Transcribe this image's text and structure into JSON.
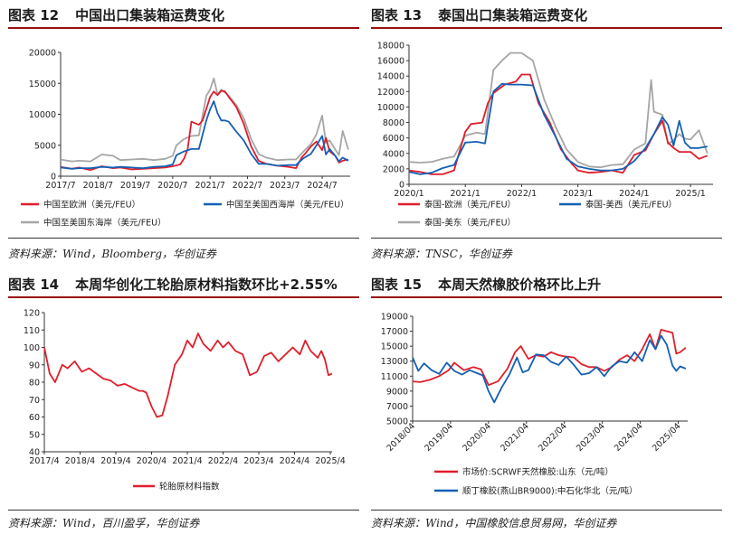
{
  "panels": [
    {
      "id": "p12",
      "title_num": "图表 12",
      "title_text": "中国出口集装箱运费变化",
      "source": "资料来源：Wind，Bloomberg，华创证券"
    },
    {
      "id": "p13",
      "title_num": "图表 13",
      "title_text": "泰国出口集装箱运费变化",
      "source": "资料来源：TNSC，华创证券"
    },
    {
      "id": "p14",
      "title_num": "图表 14",
      "title_text": "本周华创化工轮胎原材料指数环比+2.55%",
      "source": "资料来源：Wind，百川盈孚，华创证券"
    },
    {
      "id": "p15",
      "title_num": "图表 15",
      "title_text": "本周天然橡胶价格环比上升",
      "source": "资料来源：Wind，中国橡胶信息贸易网，华创证券"
    }
  ],
  "chart_data": [
    {
      "type": "line",
      "ylim": [
        0,
        20000
      ],
      "yticks": [
        "0",
        "5000",
        "10000",
        "15000",
        "20000"
      ],
      "xticks": [
        "2017/7",
        "2018/7",
        "2019/7",
        "2020/7",
        "2021/7",
        "2022/7",
        "2023/7",
        "2024/7"
      ],
      "xrange": [
        2017.5,
        2025.25
      ],
      "legend_placement": "bottom",
      "series": [
        {
          "name": "中国至欧洲（美元/FEU）",
          "color": "#e01e2b",
          "x": [
            2017.5,
            2017.8,
            2018.0,
            2018.3,
            2018.6,
            2018.9,
            2019.1,
            2019.4,
            2019.7,
            2020.0,
            2020.3,
            2020.5,
            2020.7,
            2020.8,
            2020.9,
            2021.0,
            2021.2,
            2021.3,
            2021.5,
            2021.6,
            2021.7,
            2021.8,
            2021.9,
            2022.0,
            2022.2,
            2022.4,
            2022.6,
            2022.8,
            2023.0,
            2023.3,
            2023.6,
            2023.8,
            2023.95,
            2024.05,
            2024.2,
            2024.35,
            2024.5,
            2024.6,
            2024.7,
            2024.85,
            2024.95,
            2025.05,
            2025.2
          ],
          "y": [
            1500,
            1200,
            1400,
            1000,
            1600,
            1300,
            1400,
            1100,
            1200,
            1300,
            1400,
            1600,
            1900,
            2800,
            4400,
            8800,
            8300,
            9000,
            12800,
            13700,
            13100,
            13800,
            13700,
            12800,
            11200,
            8500,
            4800,
            2500,
            2000,
            1700,
            1500,
            1300,
            3000,
            3700,
            4800,
            5600,
            4200,
            6200,
            4000,
            3300,
            2200,
            2500,
            2700
          ]
        },
        {
          "name": "中国至美国西海岸（美元/FEU）",
          "color": "#1460b4",
          "x": [
            2017.5,
            2017.8,
            2018.0,
            2018.3,
            2018.6,
            2018.9,
            2019.1,
            2019.4,
            2019.7,
            2020.0,
            2020.3,
            2020.5,
            2020.6,
            2020.8,
            2021.0,
            2021.2,
            2021.4,
            2021.5,
            2021.6,
            2021.7,
            2021.8,
            2021.9,
            2022.0,
            2022.2,
            2022.4,
            2022.6,
            2022.8,
            2023.0,
            2023.3,
            2023.6,
            2023.8,
            2024.0,
            2024.2,
            2024.35,
            2024.5,
            2024.6,
            2024.7,
            2024.85,
            2024.95,
            2025.05,
            2025.2
          ],
          "y": [
            1400,
            1200,
            1300,
            1300,
            1500,
            1400,
            1500,
            1400,
            1300,
            1500,
            1600,
            1900,
            3400,
            4000,
            4400,
            4400,
            9000,
            10800,
            12100,
            10200,
            9000,
            9000,
            8800,
            7200,
            5800,
            3600,
            2000,
            2000,
            1700,
            1800,
            1800,
            2900,
            3600,
            5000,
            6500,
            3500,
            4400,
            3300,
            2400,
            3000,
            2500
          ]
        },
        {
          "name": "中国至美国东海岸（美元/FEU）",
          "color": "#a6a6a6",
          "x": [
            2017.5,
            2017.8,
            2018.0,
            2018.3,
            2018.6,
            2018.9,
            2019.1,
            2019.4,
            2019.7,
            2020.0,
            2020.3,
            2020.5,
            2020.6,
            2020.8,
            2021.0,
            2021.2,
            2021.4,
            2021.5,
            2021.6,
            2021.7,
            2021.8,
            2021.9,
            2022.0,
            2022.2,
            2022.4,
            2022.6,
            2022.8,
            2023.0,
            2023.3,
            2023.6,
            2023.8,
            2024.0,
            2024.2,
            2024.35,
            2024.5,
            2024.6,
            2024.7,
            2024.85,
            2024.95,
            2025.05,
            2025.2
          ],
          "y": [
            2700,
            2400,
            2500,
            2400,
            3500,
            3300,
            2600,
            2700,
            2800,
            2600,
            2800,
            3300,
            5000,
            6000,
            6500,
            6600,
            13000,
            14000,
            15800,
            13200,
            14000,
            13500,
            13000,
            11500,
            9400,
            6000,
            3600,
            3000,
            2600,
            2700,
            2700,
            4000,
            5200,
            6800,
            9800,
            5400,
            5800,
            4300,
            3400,
            7300,
            4300
          ]
        }
      ]
    },
    {
      "type": "line",
      "ylim": [
        0,
        18000
      ],
      "yticks": [
        "0",
        "2000",
        "4000",
        "6000",
        "8000",
        "10000",
        "12000",
        "14000",
        "16000",
        "18000"
      ],
      "xticks": [
        "2020/1",
        "2021/1",
        "2022/1",
        "2023/1",
        "2024/1",
        "2025/1"
      ],
      "xrange": [
        2020.0,
        2025.4
      ],
      "legend_placement": "bottom",
      "series": [
        {
          "name": "泰国-欧洲（美元/FEU）",
          "color": "#e01e2b",
          "x": [
            2020.0,
            2020.2,
            2020.4,
            2020.6,
            2020.8,
            2021.0,
            2021.1,
            2021.3,
            2021.4,
            2021.5,
            2021.7,
            2021.9,
            2022.0,
            2022.15,
            2022.3,
            2022.5,
            2022.7,
            2022.9,
            2023.0,
            2023.2,
            2023.4,
            2023.6,
            2023.8,
            2024.0,
            2024.2,
            2024.35,
            2024.5,
            2024.6,
            2024.7,
            2024.8,
            2025.0,
            2025.15,
            2025.3
          ],
          "y": [
            1800,
            1600,
            1300,
            1300,
            1800,
            6800,
            7800,
            8000,
            10500,
            11800,
            12900,
            13300,
            14200,
            14200,
            10500,
            8000,
            4500,
            2600,
            1800,
            1500,
            1600,
            1800,
            1500,
            3800,
            4400,
            6500,
            8200,
            5400,
            4700,
            4200,
            4200,
            3300,
            3700
          ]
        },
        {
          "name": "泰国-美西（美元/FEU）",
          "color": "#1460b4",
          "x": [
            2020.0,
            2020.2,
            2020.4,
            2020.6,
            2020.8,
            2021.0,
            2021.2,
            2021.35,
            2021.5,
            2021.65,
            2021.8,
            2022.0,
            2022.2,
            2022.4,
            2022.6,
            2022.8,
            2023.0,
            2023.2,
            2023.4,
            2023.6,
            2023.8,
            2024.0,
            2024.2,
            2024.35,
            2024.5,
            2024.6,
            2024.7,
            2024.8,
            2024.9,
            2025.0,
            2025.15,
            2025.3
          ],
          "y": [
            1600,
            1300,
            1500,
            2100,
            2500,
            5400,
            5500,
            5300,
            12000,
            13000,
            12900,
            12900,
            12800,
            9000,
            6200,
            3300,
            2300,
            2000,
            1800,
            1800,
            2000,
            3000,
            4700,
            6500,
            8700,
            7700,
            5000,
            8200,
            5400,
            4700,
            4700,
            4900
          ]
        },
        {
          "name": "泰国-美东（美元/FEU）",
          "color": "#a6a6a6",
          "x": [
            2020.0,
            2020.2,
            2020.4,
            2020.6,
            2020.8,
            2021.0,
            2021.2,
            2021.35,
            2021.5,
            2021.65,
            2021.8,
            2022.0,
            2022.2,
            2022.4,
            2022.6,
            2022.8,
            2023.0,
            2023.2,
            2023.4,
            2023.6,
            2023.8,
            2024.0,
            2024.2,
            2024.3,
            2024.35,
            2024.5,
            2024.6,
            2024.7,
            2024.8,
            2024.9,
            2025.0,
            2025.15,
            2025.3
          ],
          "y": [
            2900,
            2800,
            2900,
            3300,
            3600,
            6300,
            6700,
            6500,
            14800,
            16000,
            17000,
            17000,
            16000,
            11000,
            7500,
            4500,
            2900,
            2300,
            2200,
            2500,
            2600,
            4500,
            5300,
            13500,
            9400,
            9000,
            5200,
            5700,
            6500,
            5900,
            5800,
            7000,
            4000
          ]
        }
      ]
    },
    {
      "type": "line",
      "ylim": [
        40,
        120
      ],
      "yticks": [
        "40",
        "50",
        "60",
        "70",
        "80",
        "90",
        "100",
        "110",
        "120"
      ],
      "xticks": [
        "2017/4",
        "2018/4",
        "2019/4",
        "2020/4",
        "2021/4",
        "2022/4",
        "2023/4",
        "2024/4",
        "2025/4"
      ],
      "xrange": [
        2017.25,
        2025.3
      ],
      "legend_placement": "bottom",
      "series": [
        {
          "name": "轮胎原材料指数",
          "color": "#e01e2b",
          "x": [
            2017.25,
            2017.4,
            2017.55,
            2017.75,
            2017.9,
            2018.1,
            2018.3,
            2018.5,
            2018.7,
            2018.9,
            2019.1,
            2019.3,
            2019.5,
            2019.7,
            2019.9,
            2020.0,
            2020.1,
            2020.25,
            2020.4,
            2020.55,
            2020.7,
            2020.9,
            2021.1,
            2021.25,
            2021.4,
            2021.55,
            2021.7,
            2021.9,
            2022.1,
            2022.25,
            2022.4,
            2022.6,
            2022.8,
            2023.0,
            2023.2,
            2023.4,
            2023.6,
            2023.8,
            2024.0,
            2024.2,
            2024.4,
            2024.55,
            2024.7,
            2024.9,
            2025.0,
            2025.1,
            2025.2,
            2025.3
          ],
          "y": [
            100,
            85,
            80,
            90,
            88,
            92,
            86,
            88,
            85,
            82,
            81,
            78,
            79,
            77,
            75,
            75,
            74,
            66,
            60,
            61,
            72,
            90,
            96,
            104,
            100,
            108,
            102,
            98,
            104,
            100,
            103,
            98,
            96,
            84,
            86,
            95,
            97,
            92,
            96,
            100,
            96,
            104,
            98,
            94,
            98,
            93,
            84,
            85
          ]
        }
      ]
    },
    {
      "type": "line",
      "ylim": [
        5000,
        19000
      ],
      "yticks": [
        "5000",
        "7000",
        "9000",
        "11000",
        "13000",
        "15000",
        "17000",
        "19000"
      ],
      "xticks": [
        "2018/04",
        "2019/04",
        "2020/04",
        "2021/04",
        "2022/04",
        "2023/04",
        "2024/04",
        "2025/04"
      ],
      "xrange": [
        2018.25,
        2025.5
      ],
      "legend_placement": "bottom",
      "series": [
        {
          "name": "市场价:SCRWF天然橡胶:山东（元/吨）",
          "color": "#e01e2b",
          "x": [
            2018.25,
            2018.45,
            2018.7,
            2018.95,
            2019.2,
            2019.35,
            2019.6,
            2019.85,
            2020.05,
            2020.25,
            2020.5,
            2020.75,
            2020.95,
            2021.1,
            2021.3,
            2021.5,
            2021.7,
            2021.9,
            2022.1,
            2022.3,
            2022.5,
            2022.7,
            2022.9,
            2023.1,
            2023.3,
            2023.5,
            2023.7,
            2023.9,
            2024.1,
            2024.3,
            2024.5,
            2024.65,
            2024.8,
            2024.95,
            2025.1,
            2025.2,
            2025.3,
            2025.45
          ],
          "y": [
            10300,
            10200,
            10500,
            11000,
            11800,
            12800,
            11800,
            12200,
            11900,
            9800,
            10300,
            12000,
            14200,
            15000,
            13300,
            13800,
            13600,
            14200,
            13800,
            13600,
            13500,
            12600,
            12200,
            12200,
            11700,
            12200,
            13200,
            13800,
            13000,
            14600,
            16600,
            14600,
            17200,
            17000,
            16800,
            14000,
            14200,
            14800
          ]
        },
        {
          "name": "顺丁橡胶(燕山BR9000):中石化华北（元/吨）",
          "color": "#1460b4",
          "x": [
            2018.25,
            2018.4,
            2018.55,
            2018.75,
            2018.95,
            2019.15,
            2019.35,
            2019.55,
            2019.75,
            2019.95,
            2020.1,
            2020.25,
            2020.4,
            2020.6,
            2020.8,
            2021.0,
            2021.15,
            2021.3,
            2021.5,
            2021.7,
            2021.9,
            2022.1,
            2022.3,
            2022.5,
            2022.7,
            2022.9,
            2023.1,
            2023.3,
            2023.5,
            2023.7,
            2023.9,
            2024.1,
            2024.3,
            2024.5,
            2024.65,
            2024.8,
            2024.95,
            2025.1,
            2025.2,
            2025.3,
            2025.45
          ],
          "y": [
            13500,
            11700,
            12700,
            11800,
            11300,
            12800,
            11700,
            11200,
            11800,
            11400,
            11100,
            9000,
            7500,
            9500,
            11200,
            13500,
            11500,
            11800,
            13900,
            13800,
            12900,
            12500,
            13600,
            12500,
            11200,
            11400,
            12200,
            11000,
            12300,
            13000,
            12800,
            14200,
            13000,
            15800,
            14600,
            16400,
            15200,
            12400,
            11700,
            12300,
            12000
          ]
        }
      ]
    }
  ]
}
